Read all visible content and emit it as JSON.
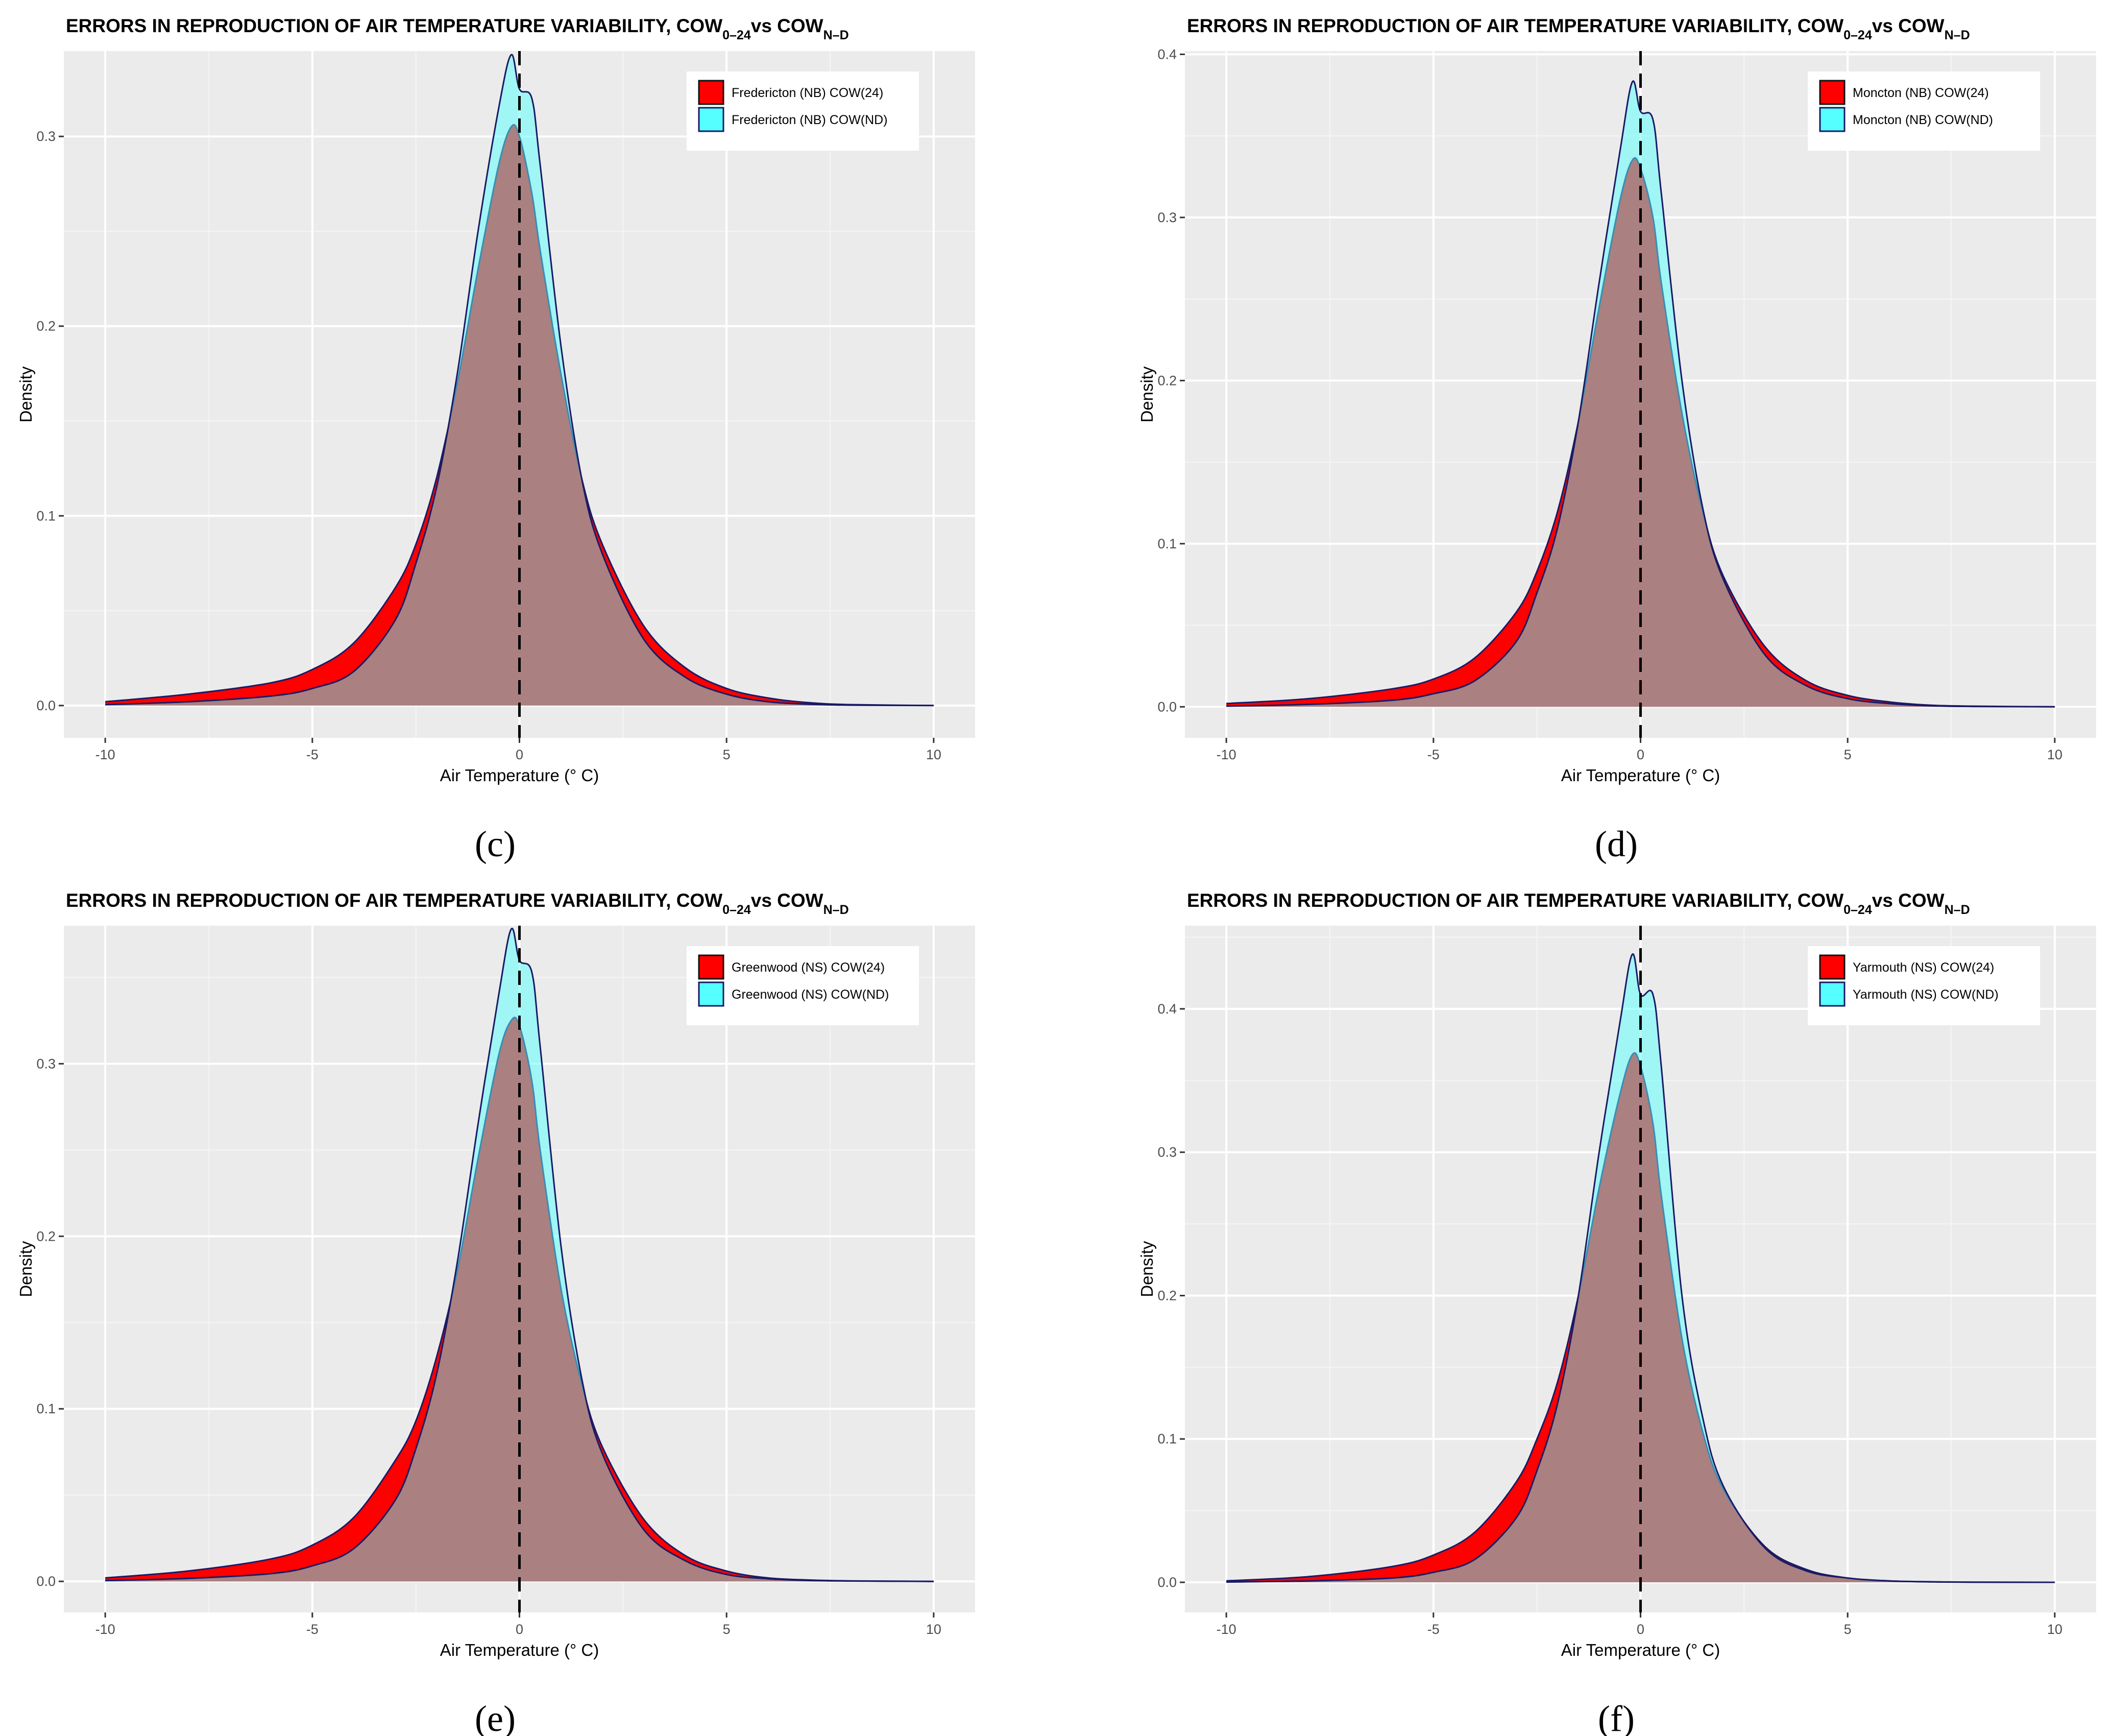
{
  "figure": {
    "panel_captions": [
      "(c)",
      "(d)",
      "(e)",
      "(f)"
    ]
  },
  "chart_data": [
    {
      "type": "area",
      "panel": "(c)",
      "title": "ERRORS IN REPRODUCTION OF AIR TEMPERATURE VARIABILITY, COW",
      "title_sub1": "0–24",
      "title_mid": "vs COW",
      "title_sub2": "N–D",
      "xlabel": "Air Temperature (° C)",
      "ylabel": "Density",
      "xlim": [
        -11,
        11
      ],
      "ylim": [
        -0.017,
        0.345
      ],
      "xticks": [
        -10,
        -5,
        0,
        5,
        10
      ],
      "xtick_labels": [
        "-10",
        "-5",
        "0",
        "5",
        "10"
      ],
      "yticks": [
        0,
        0.1,
        0.2,
        0.3
      ],
      "ytick_labels": [
        "0.0",
        "0.1",
        "0.2",
        "0.3"
      ],
      "vline_x": 0,
      "legend_position": "top-right",
      "series": [
        {
          "name": "Fredericton (NB)  COW(24)",
          "color": "#ff0000",
          "x": [
            -10,
            -8,
            -6,
            -5,
            -4,
            -3,
            -2.5,
            -2,
            -1.5,
            -1,
            -0.5,
            -0.2,
            0,
            0.3,
            0.5,
            1,
            1.5,
            2,
            3,
            4,
            5,
            6,
            7,
            8,
            10
          ],
          "y": [
            0.002,
            0.006,
            0.012,
            0.019,
            0.033,
            0.062,
            0.085,
            0.12,
            0.17,
            0.23,
            0.285,
            0.305,
            0.3,
            0.27,
            0.24,
            0.175,
            0.12,
            0.085,
            0.042,
            0.02,
            0.009,
            0.004,
            0.0015,
            0.0005,
            0.0
          ]
        },
        {
          "name": "Fredericton (NB)  COW(ND)",
          "color": "#55ffff",
          "x": [
            -10,
            -8,
            -6,
            -5,
            -4,
            -3,
            -2.5,
            -2,
            -1.5,
            -1,
            -0.5,
            -0.2,
            0,
            0.3,
            0.5,
            1,
            1.5,
            2,
            3,
            4,
            5,
            6,
            7,
            8,
            10
          ],
          "y": [
            0.0005,
            0.002,
            0.005,
            0.009,
            0.018,
            0.045,
            0.075,
            0.115,
            0.175,
            0.25,
            0.315,
            0.343,
            0.325,
            0.32,
            0.285,
            0.19,
            0.12,
            0.08,
            0.035,
            0.015,
            0.006,
            0.002,
            0.0007,
            0.0002,
            0.0
          ]
        }
      ]
    },
    {
      "type": "area",
      "panel": "(d)",
      "title": "ERRORS IN REPRODUCTION OF AIR TEMPERATURE VARIABILITY, COW",
      "title_sub1": "0–24",
      "title_mid": "vs COW",
      "title_sub2": "N–D",
      "xlabel": "Air Temperature (° C)",
      "ylabel": "Density",
      "xlim": [
        -11,
        11
      ],
      "ylim": [
        -0.019,
        0.402
      ],
      "xticks": [
        -10,
        -5,
        0,
        5,
        10
      ],
      "xtick_labels": [
        "-10",
        "-5",
        "0",
        "5",
        "10"
      ],
      "yticks": [
        0,
        0.1,
        0.2,
        0.3,
        0.4
      ],
      "ytick_labels": [
        "0.0",
        "0.1",
        "0.2",
        "0.3",
        "0.4"
      ],
      "vline_x": 0,
      "legend_position": "top-right",
      "series": [
        {
          "name": "Moncton (NB)  COW(24)",
          "color": "#ff0000",
          "x": [
            -10,
            -8,
            -6,
            -5,
            -4,
            -3,
            -2.5,
            -2,
            -1.5,
            -1,
            -0.5,
            -0.2,
            0,
            0.3,
            0.5,
            1,
            1.5,
            2,
            3,
            4,
            5,
            6,
            7,
            8,
            10
          ],
          "y": [
            0.002,
            0.005,
            0.011,
            0.017,
            0.03,
            0.058,
            0.083,
            0.12,
            0.175,
            0.245,
            0.31,
            0.335,
            0.33,
            0.3,
            0.26,
            0.18,
            0.12,
            0.08,
            0.037,
            0.016,
            0.007,
            0.003,
            0.001,
            0.0004,
            0.0
          ]
        },
        {
          "name": "Moncton (NB)  COW(ND)",
          "color": "#55ffff",
          "x": [
            -10,
            -8,
            -6,
            -5,
            -4,
            -3,
            -2.5,
            -2,
            -1.5,
            -1,
            -0.5,
            -0.2,
            0,
            0.3,
            0.5,
            1,
            1.5,
            2,
            3,
            4,
            5,
            6,
            7,
            8,
            10
          ],
          "y": [
            0.0004,
            0.0015,
            0.004,
            0.008,
            0.016,
            0.04,
            0.07,
            0.11,
            0.175,
            0.26,
            0.34,
            0.383,
            0.365,
            0.36,
            0.315,
            0.2,
            0.122,
            0.078,
            0.032,
            0.013,
            0.005,
            0.002,
            0.0006,
            0.0002,
            0.0
          ]
        }
      ]
    },
    {
      "type": "area",
      "panel": "(e)",
      "title": "ERRORS IN REPRODUCTION OF AIR TEMPERATURE VARIABILITY, COW",
      "title_sub1": "0–24",
      "title_mid": "vs COW",
      "title_sub2": "N–D",
      "xlabel": "Air Temperature (° C)",
      "ylabel": "Density",
      "xlim": [
        -11,
        11
      ],
      "ylim": [
        -0.018,
        0.38
      ],
      "xticks": [
        -10,
        -5,
        0,
        5,
        10
      ],
      "xtick_labels": [
        "-10",
        "-5",
        "0",
        "5",
        "10"
      ],
      "yticks": [
        0,
        0.1,
        0.2,
        0.3
      ],
      "ytick_labels": [
        "0.0",
        "0.1",
        "0.2",
        "0.3"
      ],
      "vline_x": 0,
      "legend_position": "top-right",
      "series": [
        {
          "name": "Greenwood (NS)  COW(24)",
          "color": "#ff0000",
          "x": [
            -10,
            -8,
            -6,
            -5,
            -4,
            -3,
            -2.5,
            -2,
            -1.5,
            -1,
            -0.5,
            -0.2,
            0,
            0.3,
            0.5,
            1,
            1.5,
            2,
            3,
            4,
            5,
            6,
            7,
            8,
            10
          ],
          "y": [
            0.002,
            0.006,
            0.013,
            0.021,
            0.037,
            0.07,
            0.093,
            0.13,
            0.18,
            0.245,
            0.305,
            0.325,
            0.322,
            0.29,
            0.25,
            0.17,
            0.115,
            0.078,
            0.036,
            0.015,
            0.006,
            0.002,
            0.0008,
            0.0003,
            0.0
          ]
        },
        {
          "name": "Greenwood (NS)  COW(ND)",
          "color": "#55ffff",
          "x": [
            -10,
            -8,
            -6,
            -5,
            -4,
            -3,
            -2.5,
            -2,
            -1.5,
            -1,
            -0.5,
            -0.2,
            0,
            0.3,
            0.5,
            1,
            1.5,
            2,
            3,
            4,
            5,
            6,
            7,
            8,
            10
          ],
          "y": [
            0.0005,
            0.0017,
            0.0045,
            0.009,
            0.019,
            0.047,
            0.077,
            0.12,
            0.185,
            0.265,
            0.34,
            0.378,
            0.36,
            0.353,
            0.31,
            0.195,
            0.118,
            0.074,
            0.03,
            0.012,
            0.004,
            0.0015,
            0.0005,
            0.0002,
            0.0
          ]
        }
      ]
    },
    {
      "type": "area",
      "panel": "(f)",
      "title": "ERRORS IN REPRODUCTION OF AIR TEMPERATURE VARIABILITY, COW",
      "title_sub1": "0–24",
      "title_mid": "vs COW",
      "title_sub2": "N–D",
      "xlabel": "Air Temperature (° C)",
      "ylabel": "Density",
      "xlim": [
        -11,
        11
      ],
      "ylim": [
        -0.021,
        0.458
      ],
      "xticks": [
        -10,
        -5,
        0,
        5,
        10
      ],
      "xtick_labels": [
        "-10",
        "-5",
        "0",
        "5",
        "10"
      ],
      "yticks": [
        0,
        0.1,
        0.2,
        0.3,
        0.4
      ],
      "ytick_labels": [
        "0.0",
        "0.1",
        "0.2",
        "0.3",
        "0.4"
      ],
      "vline_x": 0,
      "legend_position": "top-right",
      "series": [
        {
          "name": "Yarmouth (NS)  COW(24)",
          "color": "#ff0000",
          "x": [
            -10,
            -8,
            -6,
            -5,
            -4,
            -3,
            -2.5,
            -2,
            -1.5,
            -1,
            -0.5,
            -0.2,
            0,
            0.3,
            0.5,
            1,
            1.5,
            2,
            3,
            4,
            5,
            6,
            7,
            8,
            10
          ],
          "y": [
            0.001,
            0.004,
            0.011,
            0.019,
            0.035,
            0.07,
            0.1,
            0.14,
            0.2,
            0.275,
            0.34,
            0.368,
            0.36,
            0.32,
            0.27,
            0.17,
            0.105,
            0.065,
            0.025,
            0.009,
            0.003,
            0.001,
            0.0004,
            0.0001,
            0.0
          ]
        },
        {
          "name": "Yarmouth (NS)  COW(ND)",
          "color": "#55ffff",
          "x": [
            -10,
            -8,
            -6,
            -5,
            -4,
            -3,
            -2.5,
            -2,
            -1.5,
            -1,
            -0.5,
            -0.2,
            0,
            0.3,
            0.5,
            1,
            1.5,
            2,
            3,
            4,
            5,
            6,
            7,
            8,
            10
          ],
          "y": [
            0.0002,
            0.001,
            0.003,
            0.007,
            0.016,
            0.045,
            0.078,
            0.125,
            0.2,
            0.3,
            0.39,
            0.438,
            0.41,
            0.41,
            0.36,
            0.2,
            0.115,
            0.067,
            0.024,
            0.008,
            0.003,
            0.001,
            0.0003,
            0.0001,
            0.0
          ]
        }
      ]
    }
  ]
}
